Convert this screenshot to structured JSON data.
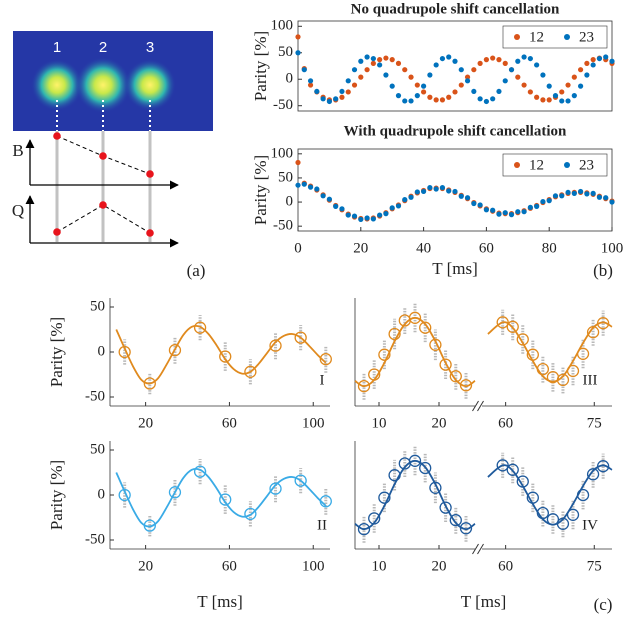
{
  "panel_a": {
    "ion_labels": [
      "1",
      "2",
      "3"
    ],
    "axis_labels": [
      "B",
      "Q"
    ]
  },
  "panel_labels": [
    "(a)",
    "(b)",
    "(c)"
  ],
  "chart_data": [
    {
      "type": "scatter",
      "title": "No quadrupole shift cancellation",
      "ylabel": "Parity [%]",
      "x": [
        0,
        2,
        4,
        6,
        8,
        10,
        12,
        14,
        16,
        18,
        20,
        22,
        24,
        26,
        28,
        30,
        32,
        34,
        36,
        38,
        40,
        42,
        44,
        46,
        48,
        50,
        52,
        54,
        56,
        58,
        60,
        62,
        64,
        66,
        68,
        70,
        72,
        74,
        76,
        78,
        80,
        82,
        84,
        86,
        88,
        90,
        92,
        94,
        96,
        98,
        100
      ],
      "series": [
        {
          "name": "12",
          "color": "#d95319",
          "values": [
            80,
            20,
            -11,
            -24,
            -34,
            -39,
            -39,
            -34,
            -24,
            -11,
            4,
            18,
            30,
            37,
            40,
            37,
            30,
            18,
            4,
            -11,
            -24,
            -34,
            -39,
            -39,
            -34,
            -24,
            -11,
            4,
            18,
            30,
            37,
            40,
            37,
            30,
            18,
            4,
            -11,
            -24,
            -34,
            -39,
            -39,
            -34,
            -24,
            -11,
            4,
            18,
            30,
            37,
            40,
            37,
            30
          ]
        },
        {
          "name": "23",
          "color": "#0072bd",
          "values": [
            50,
            18,
            -3,
            -23,
            -37,
            -42,
            -37,
            -23,
            -3,
            18,
            34,
            42,
            39,
            27,
            8,
            -13,
            -31,
            -41,
            -41,
            -31,
            -13,
            8,
            27,
            39,
            42,
            34,
            18,
            -3,
            -23,
            -37,
            -42,
            -37,
            -23,
            -3,
            18,
            34,
            42,
            39,
            27,
            8,
            -13,
            -31,
            -41,
            -41,
            -31,
            -13,
            8,
            27,
            39,
            42,
            34
          ]
        }
      ],
      "xlim": [
        0,
        100
      ],
      "ylim": [
        -60,
        110
      ],
      "yticks": [
        -50,
        0,
        50,
        100
      ],
      "legend": "upper-right"
    },
    {
      "type": "scatter",
      "title": "With quadrupole shift cancellation",
      "ylabel": "Parity [%]",
      "xlabel": "T [ms]",
      "x": [
        0,
        2,
        4,
        6,
        8,
        10,
        12,
        14,
        16,
        18,
        20,
        22,
        24,
        26,
        28,
        30,
        32,
        34,
        36,
        38,
        40,
        42,
        44,
        46,
        48,
        50,
        52,
        54,
        56,
        58,
        60,
        62,
        64,
        66,
        68,
        70,
        72,
        74,
        76,
        78,
        80,
        82,
        84,
        86,
        88,
        90,
        92,
        94,
        96,
        98,
        100
      ],
      "series": [
        {
          "name": "12",
          "color": "#d95319",
          "values": [
            82,
            39,
            33,
            25,
            15,
            4,
            -7,
            -16,
            -25,
            -31,
            -34,
            -35,
            -33,
            -29,
            -22,
            -14,
            -6,
            3,
            12,
            19,
            24,
            28,
            29,
            28,
            25,
            20,
            14,
            7,
            -1,
            -8,
            -14,
            -19,
            -23,
            -24,
            -24,
            -22,
            -18,
            -13,
            -7,
            -1,
            5,
            11,
            15,
            18,
            20,
            20,
            19,
            16,
            12,
            7,
            2
          ]
        },
        {
          "name": "23",
          "color": "#0072bd",
          "values": [
            35,
            37,
            31,
            27,
            13,
            6,
            -9,
            -14,
            -27,
            -29,
            -36,
            -33,
            -35,
            -27,
            -24,
            -12,
            -8,
            5,
            10,
            21,
            22,
            30,
            27,
            30,
            23,
            22,
            12,
            9,
            -3,
            -6,
            -16,
            -17,
            -25,
            -22,
            -26,
            -20,
            -20,
            -11,
            -9,
            1,
            3,
            13,
            13,
            20,
            18,
            22,
            17,
            18,
            10,
            9,
            0
          ]
        }
      ],
      "xlim": [
        0,
        100
      ],
      "xticks": [
        0,
        20,
        40,
        60,
        80,
        100
      ],
      "ylim": [
        -60,
        110
      ],
      "yticks": [
        -50,
        0,
        50,
        100
      ],
      "legend": "upper-right"
    },
    {
      "type": "scatter",
      "label": "I",
      "ylabel": "Parity [%]",
      "color": "#e08a1e",
      "x": [
        10,
        22,
        34,
        46,
        58,
        70,
        82,
        94,
        106
      ],
      "values": [
        0,
        -35,
        2,
        27,
        -5,
        -22,
        7,
        16,
        -8
      ],
      "spread": [
        14,
        12,
        15,
        14,
        16,
        14,
        15,
        14,
        15
      ],
      "fit": {
        "x": [
          6,
          10,
          14,
          18,
          22,
          26,
          30,
          34,
          38,
          42,
          46,
          50,
          54,
          58,
          62,
          66,
          70,
          74,
          78,
          82,
          86,
          90,
          94,
          98,
          102,
          106
        ],
        "values": [
          25,
          4,
          -16,
          -31,
          -35,
          -29,
          -14,
          3,
          19,
          28,
          28,
          20,
          7,
          -8,
          -19,
          -24,
          -22,
          -13,
          -1,
          11,
          18,
          20,
          16,
          7,
          -3,
          -12
        ]
      },
      "xlim": [
        3,
        108
      ],
      "xticks": [
        20,
        60,
        100
      ],
      "ylim": [
        -60,
        60
      ],
      "yticks": [
        -50,
        0,
        50
      ]
    },
    {
      "type": "scatter",
      "label": "II",
      "ylabel": "Parity [%]",
      "xlabel": "T [ms]",
      "color": "#3aabe6",
      "x": [
        10,
        22,
        34,
        46,
        58,
        70,
        82,
        94,
        106
      ],
      "values": [
        0,
        -34,
        3,
        26,
        -5,
        -21,
        7,
        16,
        -7
      ],
      "spread": [
        14,
        12,
        15,
        14,
        16,
        14,
        15,
        14,
        15
      ],
      "fit": {
        "x": [
          6,
          10,
          14,
          18,
          22,
          26,
          30,
          34,
          38,
          42,
          46,
          50,
          54,
          58,
          62,
          66,
          70,
          74,
          78,
          82,
          86,
          90,
          94,
          98,
          102,
          106
        ],
        "values": [
          25,
          4,
          -16,
          -31,
          -35,
          -29,
          -14,
          3,
          19,
          28,
          28,
          20,
          7,
          -8,
          -19,
          -24,
          -22,
          -13,
          -1,
          11,
          18,
          20,
          16,
          7,
          -3,
          -12
        ]
      },
      "xlim": [
        3,
        108
      ],
      "xticks": [
        20,
        60,
        100
      ],
      "ylim": [
        -60,
        60
      ],
      "yticks": [
        -50,
        0,
        50
      ]
    },
    {
      "type": "scatter",
      "label": "III",
      "color": "#e08a1e",
      "ylim": [
        -60,
        60
      ],
      "segments": [
        {
          "x": [
            7.5,
            9.2,
            10.9,
            12.6,
            14.3,
            16,
            17.7,
            19.4,
            21.1,
            22.8,
            24.5
          ],
          "values": [
            -38,
            -25,
            -3,
            20,
            35,
            38,
            27,
            8,
            -14,
            -27,
            -37
          ],
          "spread": [
            15,
            16,
            16,
            17,
            15,
            16,
            16,
            17,
            16,
            15,
            15
          ],
          "fit": {
            "x": [
              6,
              7.5,
              9.2,
              10.9,
              12.6,
              14.3,
              16,
              17.7,
              19.4,
              21.1,
              22.8,
              24.5,
              26
            ],
            "values": [
              -32,
              -38,
              -31,
              -12,
              12,
              31,
              38,
              31,
              12,
              -12,
              -31,
              -38,
              -32
            ]
          },
          "xlim": [
            6,
            26
          ],
          "xticks": [
            10,
            20
          ]
        },
        {
          "x": [
            59.5,
            61.2,
            62.9,
            64.6,
            66.3,
            68,
            69.7,
            71.4,
            73.1,
            74.8,
            76.5
          ],
          "values": [
            33,
            28,
            14,
            -3,
            -19,
            -28,
            -31,
            -21,
            -2,
            22,
            32
          ],
          "spread": [
            14,
            15,
            16,
            16,
            15,
            16,
            15,
            16,
            16,
            15,
            14
          ],
          "fit": {
            "x": [
              57,
              59.5,
              61.2,
              62.9,
              64.6,
              66.3,
              68,
              69.7,
              71.4,
              73.1,
              74.8,
              76.5,
              78
            ],
            "values": [
              20,
              33,
              27,
              10,
              -10,
              -27,
              -33,
              -27,
              -10,
              10,
              27,
              33,
              28
            ]
          },
          "xlim": [
            56,
            78
          ],
          "xticks": [
            60,
            75
          ]
        }
      ]
    },
    {
      "type": "scatter",
      "label": "IV",
      "xlabel": "T [ms]",
      "color": "#1f5a9c",
      "ylim": [
        -60,
        60
      ],
      "segments": [
        {
          "x": [
            7.5,
            9.2,
            10.9,
            12.6,
            14.3,
            16,
            17.7,
            19.4,
            21.1,
            22.8,
            24.5
          ],
          "values": [
            -38,
            -26,
            -3,
            22,
            35,
            38,
            30,
            8,
            -14,
            -28,
            -37
          ],
          "spread": [
            15,
            16,
            16,
            17,
            15,
            16,
            16,
            17,
            16,
            15,
            15
          ],
          "fit": {
            "x": [
              6,
              7.5,
              9.2,
              10.9,
              12.6,
              14.3,
              16,
              17.7,
              19.4,
              21.1,
              22.8,
              24.5,
              26
            ],
            "values": [
              -32,
              -38,
              -31,
              -12,
              12,
              31,
              38,
              31,
              12,
              -12,
              -31,
              -38,
              -32
            ]
          },
          "xlim": [
            6,
            26
          ],
          "xticks": [
            10,
            20
          ]
        },
        {
          "x": [
            59.5,
            61.2,
            62.9,
            64.6,
            66.3,
            68,
            69.7,
            71.4,
            73.1,
            74.8,
            76.5
          ],
          "values": [
            33,
            28,
            15,
            -3,
            -20,
            -27,
            -32,
            -22,
            0,
            23,
            32
          ],
          "spread": [
            14,
            15,
            16,
            16,
            15,
            16,
            15,
            16,
            16,
            15,
            14
          ],
          "fit": {
            "x": [
              57,
              59.5,
              61.2,
              62.9,
              64.6,
              66.3,
              68,
              69.7,
              71.4,
              73.1,
              74.8,
              76.5,
              78
            ],
            "values": [
              20,
              33,
              27,
              10,
              -10,
              -27,
              -33,
              -27,
              -10,
              10,
              27,
              33,
              28
            ]
          },
          "xlim": [
            56,
            78
          ],
          "xticks": [
            60,
            75
          ]
        }
      ]
    }
  ]
}
